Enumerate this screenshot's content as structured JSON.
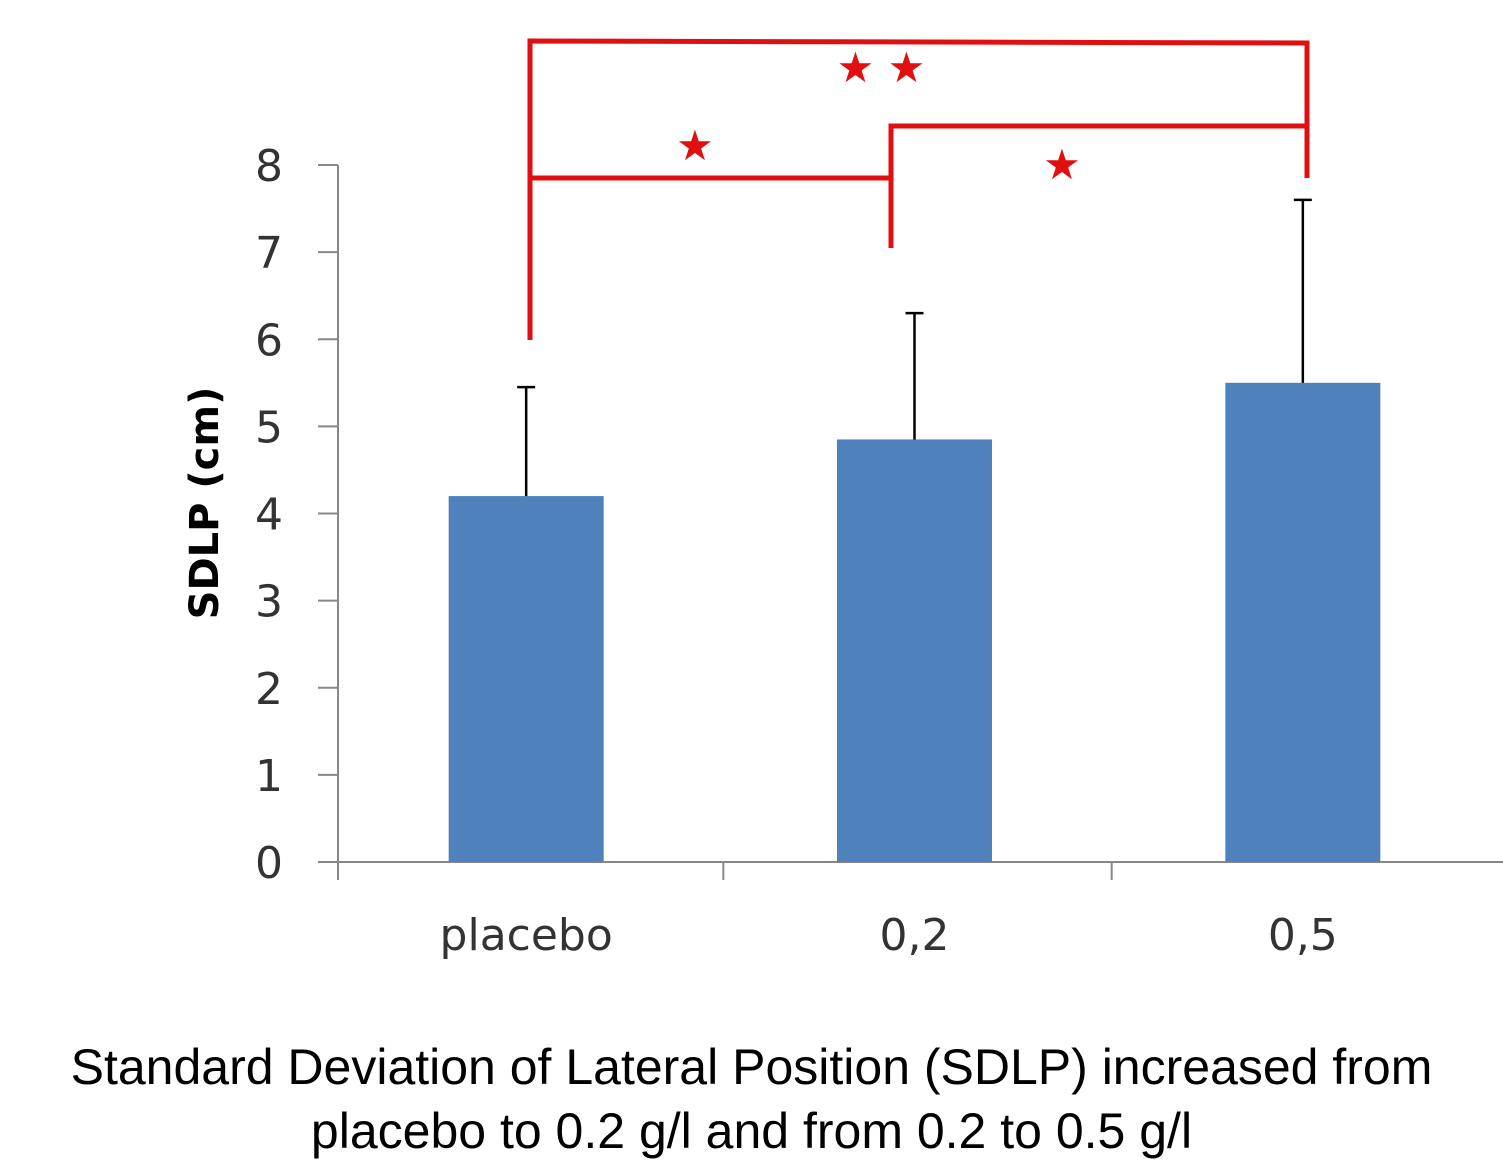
{
  "chart_data": {
    "type": "bar",
    "categories": [
      "placebo",
      "0,2",
      "0,5"
    ],
    "values": [
      4.2,
      4.85,
      5.5
    ],
    "error_upper": [
      5.45,
      6.3,
      7.6
    ],
    "ylabel": "SDLP (cm)",
    "xlabel": "",
    "ylim": [
      0,
      8
    ],
    "yticks": [
      "0",
      "1",
      "2",
      "3",
      "4",
      "5",
      "6",
      "7",
      "8"
    ],
    "bar_color": "#4f81bd",
    "error_bar_color": "#000000",
    "grid": false,
    "significance": [
      {
        "from": "placebo",
        "to": "0,2",
        "label": "★",
        "color": "#e01010"
      },
      {
        "from": "0,2",
        "to": "0,5",
        "label": "★",
        "color": "#e01010"
      },
      {
        "from": "placebo",
        "to": "0,5",
        "label": "★ ★",
        "color": "#e01010"
      }
    ]
  },
  "caption": {
    "line1": "Standard Deviation of Lateral Position (SDLP) increased from",
    "line2": "placebo to 0.2 g/l and from 0.2 to 0.5 g/l"
  }
}
